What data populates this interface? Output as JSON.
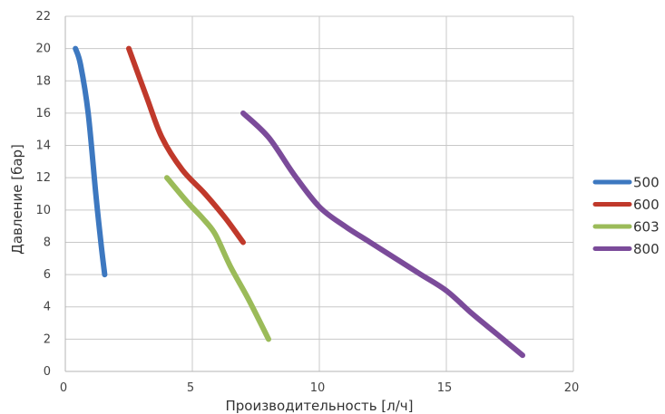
{
  "chart_data": {
    "type": "line",
    "xlabel": "Производительность [л/ч]",
    "ylabel": "Давление [бар]",
    "xlim": [
      0,
      20
    ],
    "ylim": [
      0,
      22
    ],
    "xticks": [
      0,
      5,
      10,
      15,
      20
    ],
    "yticks": [
      0,
      2,
      4,
      6,
      8,
      10,
      12,
      14,
      16,
      18,
      20,
      22
    ],
    "grid": true,
    "legend_position": "right",
    "series": [
      {
        "name": "500",
        "color": "#3d78c0",
        "points": [
          [
            0.4,
            20
          ],
          [
            0.6,
            19
          ],
          [
            0.9,
            16
          ],
          [
            1.2,
            11
          ],
          [
            1.4,
            8
          ],
          [
            1.55,
            6
          ]
        ]
      },
      {
        "name": "600",
        "color": "#c0392b",
        "points": [
          [
            2.5,
            20
          ],
          [
            3.2,
            17
          ],
          [
            3.8,
            14.5
          ],
          [
            4.6,
            12.5
          ],
          [
            5.5,
            11
          ],
          [
            6.3,
            9.5
          ],
          [
            7.0,
            8
          ]
        ]
      },
      {
        "name": "603",
        "color": "#9bbb59",
        "points": [
          [
            4.0,
            12
          ],
          [
            4.8,
            10.5
          ],
          [
            5.4,
            9.5
          ],
          [
            5.9,
            8.5
          ],
          [
            6.5,
            6.5
          ],
          [
            7.2,
            4.5
          ],
          [
            8.0,
            2
          ]
        ]
      },
      {
        "name": "800",
        "color": "#7b4b9a",
        "points": [
          [
            7.0,
            16
          ],
          [
            8.0,
            14.5
          ],
          [
            9.0,
            12.2
          ],
          [
            10.0,
            10.2
          ],
          [
            11.0,
            9
          ],
          [
            12.0,
            8
          ],
          [
            13.0,
            7
          ],
          [
            14.0,
            6
          ],
          [
            15.0,
            5
          ],
          [
            16.0,
            3.6
          ],
          [
            17.0,
            2.3
          ],
          [
            18.0,
            1
          ]
        ]
      }
    ]
  }
}
